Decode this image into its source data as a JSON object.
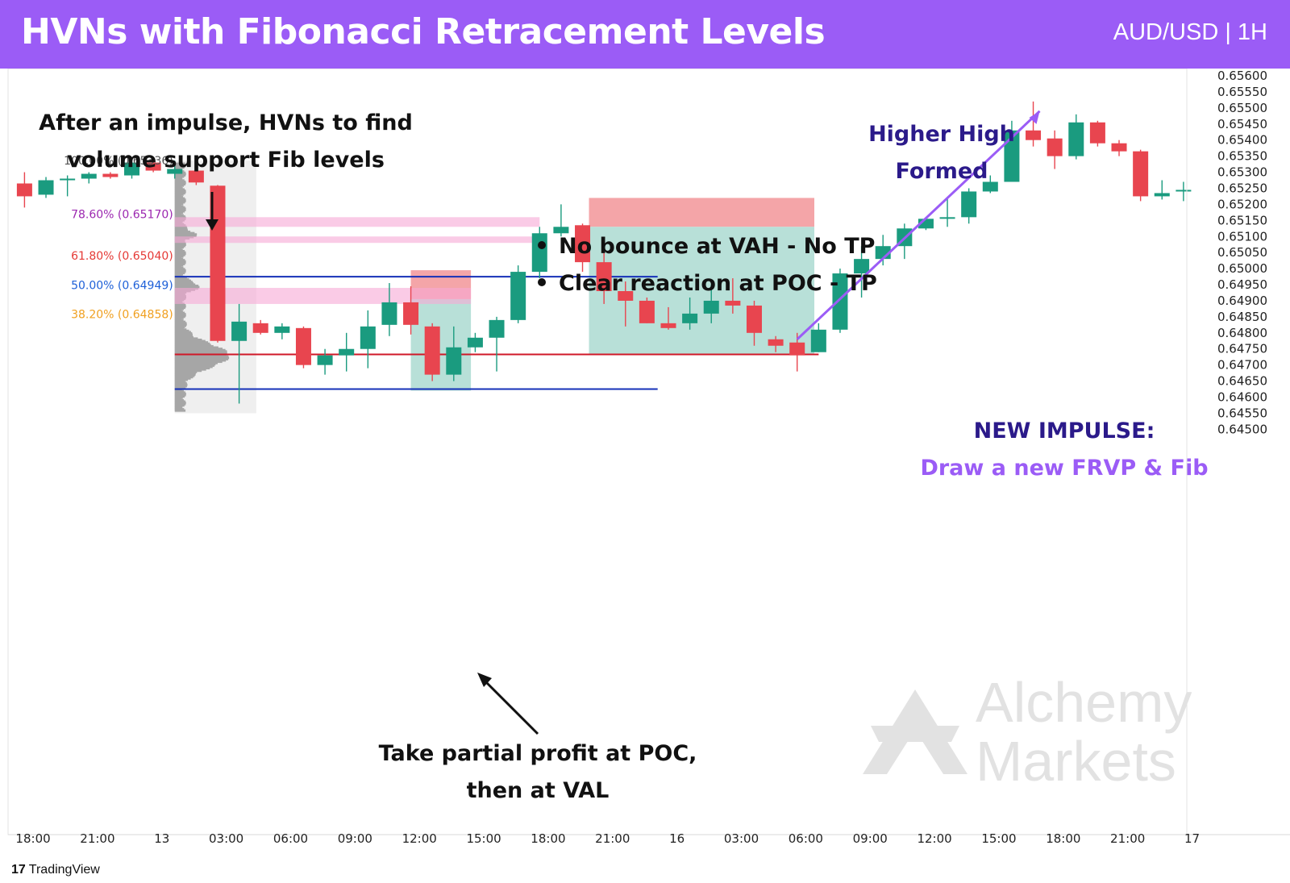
{
  "header": {
    "title": "HVNs with Fibonacci Retracement Levels",
    "pair": "AUD/USD | 1H",
    "bg_color": "#9b5cf6"
  },
  "chart_data": {
    "type": "candlestick",
    "ylim": [
      0.6448,
      0.6562
    ],
    "y_ticks": [
      "0.65600",
      "0.65550",
      "0.65500",
      "0.65450",
      "0.65400",
      "0.65350",
      "0.65300",
      "0.65250",
      "0.65200",
      "0.65150",
      "0.65100",
      "0.65050",
      "0.65000",
      "0.64950",
      "0.64900",
      "0.64850",
      "0.64800",
      "0.64750",
      "0.64700",
      "0.64650",
      "0.64600",
      "0.64550",
      "0.64500"
    ],
    "x_ticks": [
      {
        "label": "18:00",
        "bar": 0.4
      },
      {
        "label": "21:00",
        "bar": 3.4
      },
      {
        "label": "13",
        "bar": 6.4
      },
      {
        "label": "03:00",
        "bar": 9.4
      },
      {
        "label": "06:00",
        "bar": 12.4
      },
      {
        "label": "09:00",
        "bar": 15.4
      },
      {
        "label": "12:00",
        "bar": 18.4
      },
      {
        "label": "15:00",
        "bar": 21.4
      },
      {
        "label": "18:00",
        "bar": 24.4
      },
      {
        "label": "21:00",
        "bar": 27.4
      },
      {
        "label": "16",
        "bar": 30.4
      },
      {
        "label": "03:00",
        "bar": 33.4
      },
      {
        "label": "06:00",
        "bar": 36.4
      },
      {
        "label": "09:00",
        "bar": 39.4
      },
      {
        "label": "12:00",
        "bar": 42.4
      },
      {
        "label": "15:00",
        "bar": 45.4
      },
      {
        "label": "18:00",
        "bar": 48.4
      },
      {
        "label": "21:00",
        "bar": 51.4
      },
      {
        "label": "17",
        "bar": 54.4
      }
    ],
    "candles": [
      [
        0.65265,
        0.653,
        0.6519,
        0.65225
      ],
      [
        0.6523,
        0.65285,
        0.6522,
        0.65275
      ],
      [
        0.65275,
        0.6529,
        0.65225,
        0.6528
      ],
      [
        0.6528,
        0.653,
        0.65265,
        0.65295
      ],
      [
        0.65295,
        0.653,
        0.6528,
        0.65285
      ],
      [
        0.6529,
        0.6533,
        0.6528,
        0.6533
      ],
      [
        0.6533,
        0.65335,
        0.653,
        0.65305
      ],
      [
        0.65295,
        0.65336,
        0.6528,
        0.6531
      ],
      [
        0.65305,
        0.65315,
        0.6526,
        0.65268
      ],
      [
        0.65258,
        0.6526,
        0.6477,
        0.64775
      ],
      [
        0.64775,
        0.6489,
        0.6458,
        0.64835
      ],
      [
        0.6483,
        0.6484,
        0.64795,
        0.648
      ],
      [
        0.648,
        0.6483,
        0.6478,
        0.6482
      ],
      [
        0.64815,
        0.6482,
        0.6469,
        0.647
      ],
      [
        0.647,
        0.6475,
        0.6467,
        0.6473
      ],
      [
        0.6473,
        0.648,
        0.6468,
        0.6475
      ],
      [
        0.6475,
        0.6487,
        0.6469,
        0.6482
      ],
      [
        0.64825,
        0.64955,
        0.6479,
        0.64895
      ],
      [
        0.64895,
        0.64945,
        0.64795,
        0.64825
      ],
      [
        0.6482,
        0.6483,
        0.6465,
        0.6467
      ],
      [
        0.6467,
        0.6482,
        0.6465,
        0.64755
      ],
      [
        0.64755,
        0.648,
        0.6474,
        0.64785
      ],
      [
        0.64785,
        0.6485,
        0.6468,
        0.6484
      ],
      [
        0.6484,
        0.6501,
        0.6483,
        0.6499
      ],
      [
        0.6499,
        0.6513,
        0.6497,
        0.6511
      ],
      [
        0.6511,
        0.652,
        0.651,
        0.6513
      ],
      [
        0.65135,
        0.6514,
        0.6499,
        0.6502
      ],
      [
        0.6502,
        0.6505,
        0.6489,
        0.6493
      ],
      [
        0.6493,
        0.6496,
        0.6482,
        0.649
      ],
      [
        0.649,
        0.6491,
        0.6483,
        0.6483
      ],
      [
        0.6483,
        0.6488,
        0.6481,
        0.64815
      ],
      [
        0.6483,
        0.6491,
        0.6481,
        0.6486
      ],
      [
        0.6486,
        0.6495,
        0.6483,
        0.649
      ],
      [
        0.649,
        0.6497,
        0.6486,
        0.64885
      ],
      [
        0.64885,
        0.649,
        0.6476,
        0.648
      ],
      [
        0.6478,
        0.6479,
        0.6474,
        0.6476
      ],
      [
        0.6477,
        0.648,
        0.6468,
        0.6473
      ],
      [
        0.6474,
        0.6483,
        0.6474,
        0.6481
      ],
      [
        0.6481,
        0.65,
        0.648,
        0.64985
      ],
      [
        0.64985,
        0.6507,
        0.6491,
        0.6503
      ],
      [
        0.6503,
        0.65105,
        0.6501,
        0.6507
      ],
      [
        0.6507,
        0.6514,
        0.6503,
        0.65125
      ],
      [
        0.65125,
        0.6516,
        0.6512,
        0.65155
      ],
      [
        0.65155,
        0.6522,
        0.6513,
        0.6516
      ],
      [
        0.6516,
        0.6525,
        0.6514,
        0.6524
      ],
      [
        0.6524,
        0.6529,
        0.65235,
        0.6527
      ],
      [
        0.6527,
        0.6546,
        0.6527,
        0.6543
      ],
      [
        0.6543,
        0.6552,
        0.6538,
        0.654
      ],
      [
        0.65405,
        0.6543,
        0.6531,
        0.6535
      ],
      [
        0.6535,
        0.6548,
        0.6534,
        0.65455
      ],
      [
        0.65455,
        0.6546,
        0.6538,
        0.6539
      ],
      [
        0.6539,
        0.654,
        0.6535,
        0.65365
      ],
      [
        0.65365,
        0.6537,
        0.6521,
        0.65225
      ],
      [
        0.65225,
        0.65275,
        0.65215,
        0.65235
      ],
      [
        0.65245,
        0.6527,
        0.6521,
        0.65245
      ]
    ],
    "fib_levels": [
      {
        "label": "100.00% (0.65336)",
        "price": 0.65336,
        "color": "#555555"
      },
      {
        "label": "78.60% (0.65170)",
        "price": 0.6517,
        "color": "#9c27b0"
      },
      {
        "label": "61.80% (0.65040)",
        "price": 0.6504,
        "color": "#e53935"
      },
      {
        "label": "50.00% (0.64949)",
        "price": 0.64949,
        "color": "#1e60d8"
      },
      {
        "label": "38.20% (0.64858)",
        "price": 0.64858,
        "color": "#f0a020"
      }
    ],
    "levels": {
      "vah": 0.64975,
      "poc": 0.64733,
      "val": 0.64625
    },
    "annotations": {
      "note1": "After an impulse, HVNs to find",
      "note2": "volume support Fib levels",
      "bullet1": "No bounce at VAH - No TP",
      "bullet2": "Clear reaction at POC - TP",
      "hh1": "Higher High",
      "hh2": "Formed",
      "impulse1": "NEW IMPULSE:",
      "impulse2": "Draw a new FRVP & Fib",
      "profit1": "Take partial profit at POC,",
      "profit2": "then at VAL"
    },
    "watermark": [
      "Alchemy",
      "Markets"
    ],
    "colors": {
      "bull": "#1a9b7f",
      "bear": "#e8454f",
      "accent": "#9b5cf6",
      "navy": "#2b1a8a",
      "val_line": "#1530b8",
      "poc_line": "#d01828"
    }
  },
  "footer": {
    "brand": "TradingView",
    "logo": "17"
  }
}
